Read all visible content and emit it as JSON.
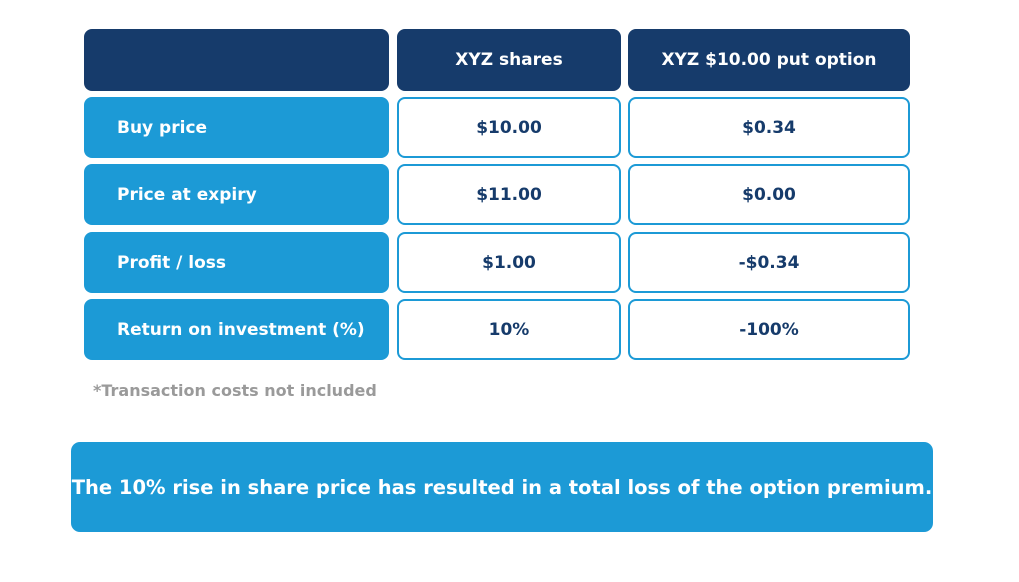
{
  "table": {
    "headers": [
      "",
      "XYZ shares",
      "XYZ $10.00 put option"
    ],
    "rows": [
      {
        "label": "Buy price",
        "shares": "$10.00",
        "option": "$0.34"
      },
      {
        "label": "Price at expiry",
        "shares": "$11.00",
        "option": "$0.00"
      },
      {
        "label": "Profit / loss",
        "shares": "$1.00",
        "option": "-$0.34"
      },
      {
        "label": "Return on investment (%)",
        "shares": "10%",
        "option": "-100%"
      }
    ]
  },
  "footnote": "*Transaction costs not included",
  "banner": "The 10% rise in share price has resulted in a total loss of the option premium.",
  "colors": {
    "header_bg": "#163b6b",
    "accent": "#1c9ad6",
    "footnote_text": "#9a9a9a"
  }
}
